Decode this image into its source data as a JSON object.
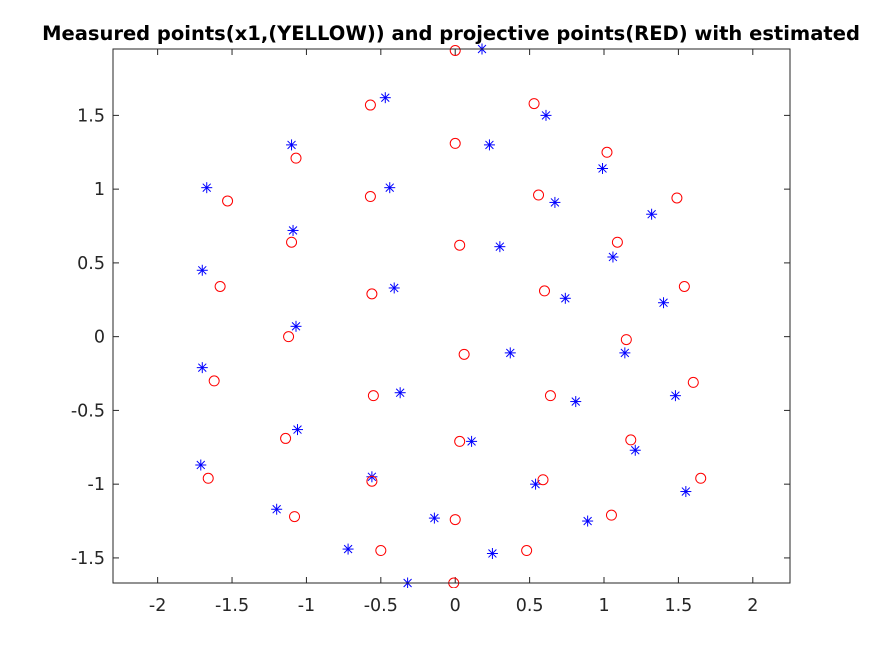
{
  "chart_data": {
    "type": "scatter",
    "title": "Measured points(x1,(YELLOW)) and projective points(RED) with estimated",
    "xlabel": "",
    "ylabel": "",
    "xlim": [
      -2.3,
      2.25
    ],
    "ylim": [
      -1.67,
      1.95
    ],
    "xticks": [
      -2,
      -1.5,
      -1,
      -0.5,
      0,
      0.5,
      1,
      1.5,
      2
    ],
    "xtick_labels": [
      "-2",
      "-1.5",
      "-1",
      "-0.5",
      "0",
      "0.5",
      "1",
      "1.5",
      "2"
    ],
    "yticks": [
      -1.5,
      -1,
      -0.5,
      0,
      0.5,
      1,
      1.5
    ],
    "ytick_labels": [
      "-1.5",
      "-1",
      "-0.5",
      "0",
      "0.5",
      "1",
      "1.5"
    ],
    "grid": false,
    "series": [
      {
        "marker": "asterisk",
        "color": "#0000ff",
        "points": [
          [
            0.18,
            1.95
          ],
          [
            -0.47,
            1.62
          ],
          [
            0.61,
            1.5
          ],
          [
            -1.1,
            1.3
          ],
          [
            0.23,
            1.3
          ],
          [
            0.99,
            1.14
          ],
          [
            -1.67,
            1.01
          ],
          [
            -0.44,
            1.01
          ],
          [
            0.67,
            0.91
          ],
          [
            1.32,
            0.83
          ],
          [
            -1.09,
            0.72
          ],
          [
            0.3,
            0.61
          ],
          [
            1.06,
            0.54
          ],
          [
            -1.7,
            0.45
          ],
          [
            -0.41,
            0.33
          ],
          [
            0.74,
            0.26
          ],
          [
            1.4,
            0.23
          ],
          [
            -1.07,
            0.07
          ],
          [
            0.37,
            -0.11
          ],
          [
            1.14,
            -0.11
          ],
          [
            -1.7,
            -0.21
          ],
          [
            -0.37,
            -0.38
          ],
          [
            1.48,
            -0.4
          ],
          [
            0.81,
            -0.44
          ],
          [
            -1.06,
            -0.63
          ],
          [
            0.11,
            -0.71
          ],
          [
            1.21,
            -0.77
          ],
          [
            -1.71,
            -0.87
          ],
          [
            -0.56,
            -0.95
          ],
          [
            0.54,
            -1.0
          ],
          [
            1.55,
            -1.05
          ],
          [
            -1.2,
            -1.17
          ],
          [
            -0.14,
            -1.23
          ],
          [
            0.89,
            -1.25
          ],
          [
            -0.72,
            -1.44
          ],
          [
            0.25,
            -1.47
          ],
          [
            -0.32,
            -1.67
          ]
        ]
      },
      {
        "marker": "circle",
        "color": "#ff0000",
        "points": [
          [
            0.0,
            1.94
          ],
          [
            -0.57,
            1.57
          ],
          [
            0.53,
            1.58
          ],
          [
            0.0,
            1.31
          ],
          [
            1.02,
            1.25
          ],
          [
            -1.07,
            1.21
          ],
          [
            -1.53,
            0.92
          ],
          [
            -0.57,
            0.95
          ],
          [
            0.56,
            0.96
          ],
          [
            1.49,
            0.94
          ],
          [
            -1.1,
            0.64
          ],
          [
            0.03,
            0.62
          ],
          [
            1.09,
            0.64
          ],
          [
            -1.58,
            0.34
          ],
          [
            -0.56,
            0.29
          ],
          [
            0.6,
            0.31
          ],
          [
            1.54,
            0.34
          ],
          [
            -1.12,
            0.0
          ],
          [
            0.06,
            -0.12
          ],
          [
            1.15,
            -0.02
          ],
          [
            -1.62,
            -0.3
          ],
          [
            -0.55,
            -0.4
          ],
          [
            0.64,
            -0.4
          ],
          [
            1.6,
            -0.31
          ],
          [
            -1.14,
            -0.69
          ],
          [
            0.03,
            -0.71
          ],
          [
            1.18,
            -0.7
          ],
          [
            -1.66,
            -0.96
          ],
          [
            -0.56,
            -0.98
          ],
          [
            0.59,
            -0.97
          ],
          [
            1.65,
            -0.96
          ],
          [
            -1.08,
            -1.22
          ],
          [
            0.0,
            -1.24
          ],
          [
            1.05,
            -1.21
          ],
          [
            -0.5,
            -1.45
          ],
          [
            0.48,
            -1.45
          ],
          [
            -0.01,
            -1.67
          ]
        ]
      }
    ]
  }
}
